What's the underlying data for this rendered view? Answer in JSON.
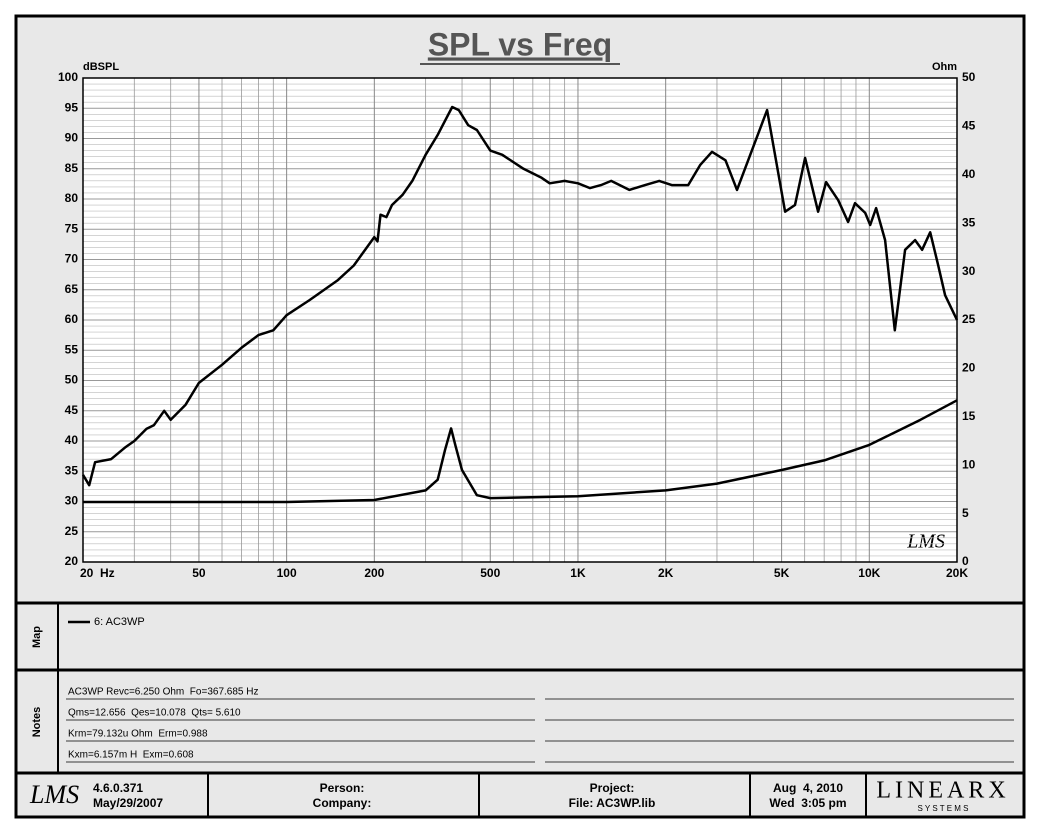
{
  "chart_data": {
    "type": "line",
    "title": "SPL vs Freq",
    "ylabel": "dBSPL",
    "y2label": "Ohm",
    "watermark": "LMS",
    "xscale": "log",
    "grid": true,
    "xlim": [
      20,
      20000
    ],
    "xticks": [
      {
        "value": 20,
        "label": "20  Hz"
      },
      50,
      100,
      200,
      500,
      {
        "value": 1000,
        "label": "1K"
      },
      {
        "value": 2000,
        "label": "2K"
      },
      {
        "value": 5000,
        "label": "5K"
      },
      {
        "value": 10000,
        "label": "10K"
      },
      {
        "value": 20000,
        "label": "20K"
      }
    ],
    "xminor": [
      30,
      40,
      60,
      70,
      80,
      90,
      300,
      400,
      600,
      700,
      800,
      900,
      3000,
      4000,
      6000,
      7000,
      8000,
      9000
    ],
    "ylim": [
      20,
      100
    ],
    "yticks": [
      20,
      25,
      30,
      35,
      40,
      45,
      50,
      55,
      60,
      65,
      70,
      75,
      80,
      85,
      90,
      95,
      100
    ],
    "yminor_step": 1,
    "y2lim": [
      0,
      50
    ],
    "y2ticks": [
      0,
      5,
      10,
      15,
      20,
      25,
      30,
      35,
      40,
      45,
      50
    ],
    "series": [
      {
        "name": "6: AC3WP",
        "color": "#000000",
        "x": [
          20,
          21,
          22,
          25,
          28,
          30,
          33,
          35,
          38,
          40,
          45,
          50,
          60,
          70,
          80,
          90,
          100,
          120,
          150,
          170,
          200,
          205,
          210,
          220,
          230,
          250,
          270,
          300,
          330,
          370,
          390,
          420,
          450,
          500,
          550,
          650,
          750,
          800,
          900,
          1000,
          1100,
          1200,
          1300,
          1500,
          1700,
          1900,
          2100,
          2390,
          2625,
          2885,
          3210,
          3515,
          4460,
          5140,
          5560,
          6020,
          6670,
          7110,
          7820,
          8460,
          8930,
          9680,
          10070,
          10550,
          11330,
          12230,
          13270,
          14360,
          15180,
          16180,
          17220,
          18200,
          20000
        ],
        "values": [
          34.4,
          32.7,
          36.5,
          37,
          39,
          40,
          42,
          42.6,
          45,
          43.5,
          46,
          49.6,
          52.6,
          55.4,
          57.5,
          58.3,
          60.8,
          63.3,
          66.6,
          69,
          73.7,
          73,
          77.4,
          77,
          79,
          80.7,
          83,
          87.3,
          90.6,
          95.2,
          94.7,
          92.2,
          91.4,
          88,
          87.3,
          85,
          83.5,
          82.6,
          83,
          82.6,
          81.8,
          82.3,
          83,
          81.5,
          82.3,
          83,
          82.3,
          82.3,
          85.6,
          87.8,
          86.4,
          81.5,
          94.7,
          77.9,
          79,
          86.8,
          77.9,
          82.8,
          79.8,
          76.2,
          79.3,
          77.7,
          75.7,
          78.5,
          73.2,
          58.3,
          71.6,
          73.2,
          71.6,
          74.5,
          69.1,
          64.1,
          60
        ]
      },
      {
        "color": "#000000",
        "axis": "y2",
        "x": [
          20,
          100,
          200,
          300,
          330,
          350,
          367,
          380,
          400,
          450,
          500,
          1000,
          2000,
          3000,
          5000,
          7000,
          10000,
          15000,
          20000
        ],
        "values": [
          6.2,
          6.2,
          6.4,
          7.4,
          8.5,
          11.6,
          13.8,
          12,
          9.5,
          6.9,
          6.6,
          6.8,
          7.4,
          8.1,
          9.5,
          10.5,
          12.1,
          14.7,
          16.7
        ]
      }
    ]
  },
  "map": {
    "label": "Map"
  },
  "notes": {
    "label": "Notes",
    "lines": [
      "AC3WP Revc=6.250 Ohm  Fo=367.685 Hz",
      "Qms=12.656  Qes=10.078  Qts= 5.610",
      "Krm=79.132u Ohm  Erm=0.988",
      "Kxm=6.157m H  Exm=0.608"
    ]
  },
  "footer": {
    "logo": "LMS",
    "version": "4.6.0.371",
    "version_date": "May/29/2007",
    "person": "Person:",
    "company": "Company:",
    "project": "Project:",
    "file": "File: AC3WP.lib",
    "date": "Aug  4, 2010",
    "time": "Wed  3:05 pm",
    "brand": "LINEARX",
    "brand_sub": "S Y S T E M S"
  }
}
